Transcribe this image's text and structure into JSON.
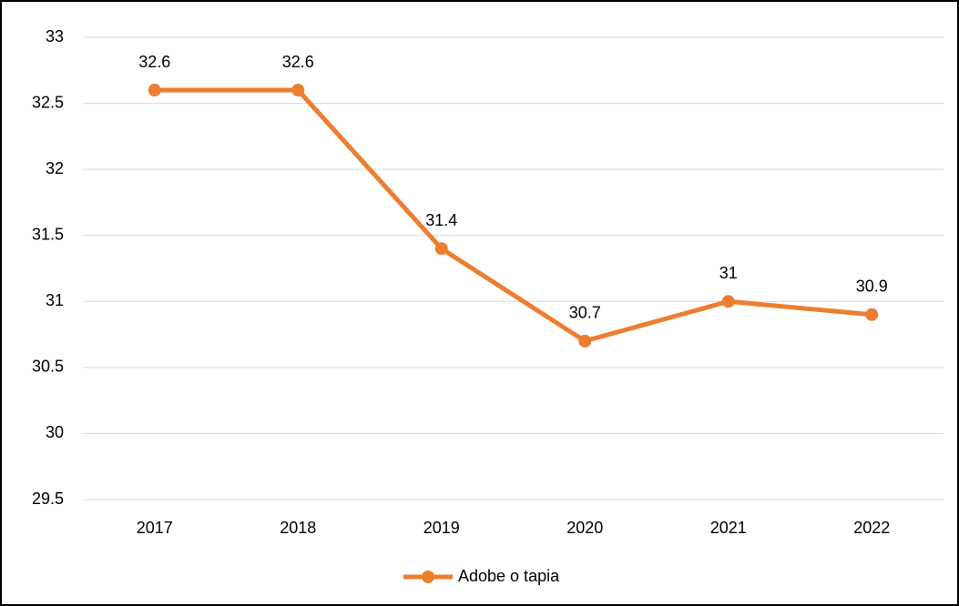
{
  "chart_data": {
    "type": "line",
    "categories": [
      "2017",
      "2018",
      "2019",
      "2020",
      "2021",
      "2022"
    ],
    "series": [
      {
        "name": "Adobe o tapia",
        "color": "#ed7d31",
        "values": [
          32.6,
          32.6,
          31.4,
          30.7,
          31,
          30.9
        ]
      }
    ],
    "ylim": [
      29.5,
      33
    ],
    "yticks": [
      29.5,
      30,
      30.5,
      31,
      31.5,
      32,
      32.5,
      33
    ],
    "grid": true,
    "legend": "bottom",
    "data_labels": true
  }
}
